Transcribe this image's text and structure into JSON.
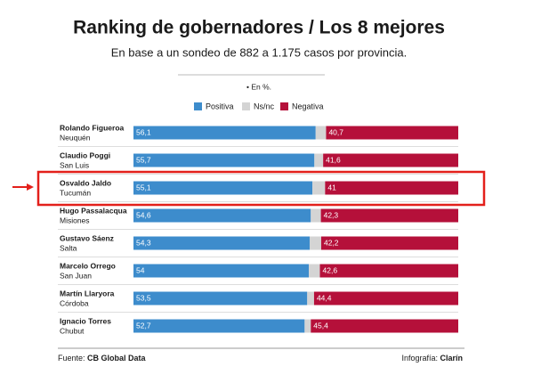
{
  "chart_data": {
    "type": "stacked-bar",
    "title": "Ranking de gobernadores / Los 8 mejores",
    "subtitle": "En base a un sondeo de 882 a 1.175 casos por provincia.",
    "note": "• En %.",
    "categories": [
      "Rolando Figueroa",
      "Claudio Poggi",
      "Osvaldo Jaldo",
      "Hugo Passalacqua",
      "Gustavo Sáenz",
      "Marcelo Orrego",
      "Martín Llaryora",
      "Ignacio Torres"
    ],
    "subcategories": [
      "Neuquén",
      "San Luis",
      "Tucumán",
      "Misiones",
      "Salta",
      "San Juan",
      "Córdoba",
      "Chubut"
    ],
    "series": [
      {
        "name": "Positiva",
        "color": "#3d8ccc",
        "values": [
          56.1,
          55.7,
          55.1,
          54.6,
          54.3,
          54,
          53.5,
          52.7
        ],
        "value_labels": [
          "56,1",
          "55,7",
          "55,1",
          "54,6",
          "54,3",
          "54",
          "53,5",
          "52,7"
        ]
      },
      {
        "name": "Ns/nc",
        "color": "#d4d4d4",
        "values": [
          3.2,
          2.7,
          3.9,
          3.1,
          3.5,
          3.4,
          2.1,
          1.9
        ]
      },
      {
        "name": "Negativa",
        "color": "#b5103a",
        "values": [
          40.7,
          41.6,
          41,
          42.3,
          42.2,
          42.6,
          44.4,
          45.4
        ],
        "value_labels": [
          "40,7",
          "41,6",
          "41",
          "42,3",
          "42,2",
          "42,6",
          "44,4",
          "45,4"
        ]
      }
    ],
    "xlim": [
      0,
      100
    ],
    "highlight": 2,
    "source_label": "Fuente:",
    "source": "CB Global Data",
    "credit_label": "Infografía:",
    "credit": "Clarín"
  }
}
